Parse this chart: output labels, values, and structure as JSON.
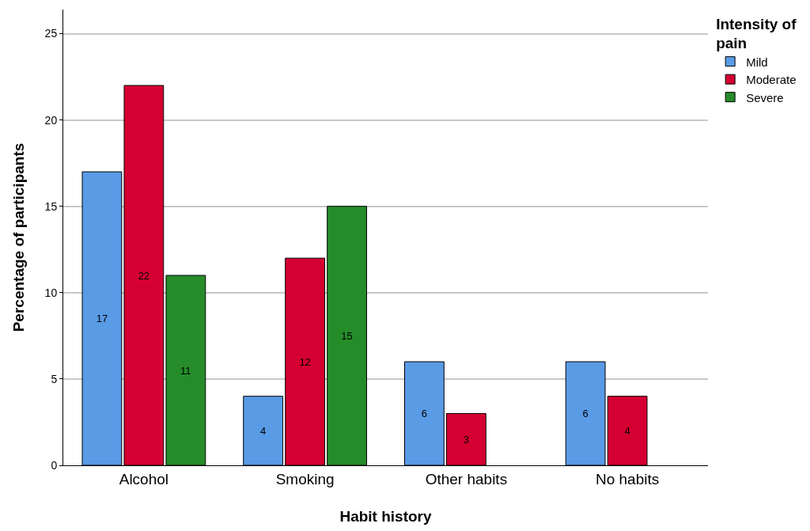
{
  "chart_data": {
    "type": "bar",
    "xlabel": "Habit history",
    "ylabel": "Percentage of participants",
    "legend_title": "Intensity of pain",
    "categories": [
      "Alcohol",
      "Smoking",
      "Other habits",
      "No habits"
    ],
    "series": [
      {
        "name": "Mild",
        "color": "#5a9be6",
        "values": [
          17,
          4,
          6,
          6
        ]
      },
      {
        "name": "Moderate",
        "color": "#d50032",
        "values": [
          22,
          12,
          3,
          4
        ]
      },
      {
        "name": "Severe",
        "color": "#268c2a",
        "values": [
          11,
          15,
          null,
          null
        ]
      }
    ],
    "ylim": [
      0,
      26.4
    ],
    "yticks": [
      0,
      5,
      10,
      15,
      20,
      25
    ],
    "grid": "y",
    "legend": "top right",
    "data_labels": true
  }
}
